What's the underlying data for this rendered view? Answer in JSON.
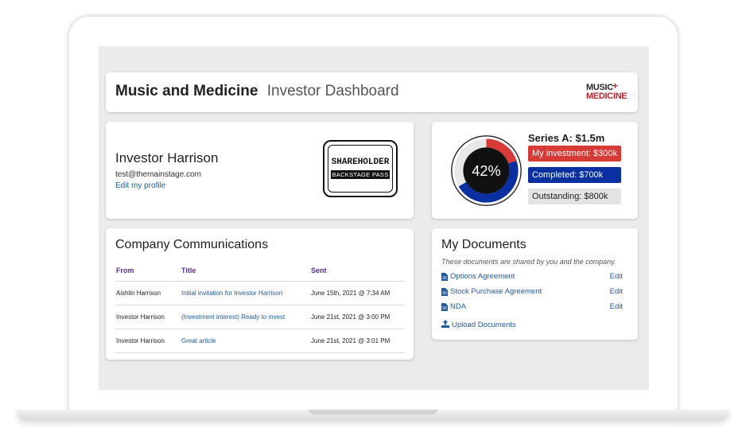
{
  "header": {
    "title": "Music and Medicine",
    "subtitle": "Investor Dashboard",
    "logo_line1": "MUSIC",
    "logo_line2": "MEDICINE"
  },
  "profile": {
    "name": "Investor Harrison",
    "email": "test@themainstage.com",
    "edit_link": "Edit my profile",
    "badge_line1": "SHAREHOLDER",
    "badge_line2": "BACKSTAGE PASS"
  },
  "series": {
    "title": "Series A: $1.5m",
    "percent_label": "42%",
    "investment_label": "My investment: $300k",
    "completed_label": "Completed: $700k",
    "outstanding_label": "Outstanding: $800k",
    "colors": {
      "investment": "#d83a36",
      "completed": "#0a2fa0",
      "outstanding": "#e3e3e3"
    },
    "fractions": {
      "investment": 0.2,
      "completed": 0.4667
    }
  },
  "communications": {
    "title": "Company Communications",
    "columns": [
      "From",
      "Title",
      "Sent"
    ],
    "rows": [
      {
        "from": "Aishlin Harrison",
        "title": "Initial invitation for Investor Harrison",
        "sent": "June 15th, 2021 @ 7:34 AM"
      },
      {
        "from": "Investor Harrison",
        "title": "(Investment interest) Ready to invest",
        "sent": "June 21st, 2021 @ 3:00 PM"
      },
      {
        "from": "Investor Harrison",
        "title": "Great article",
        "sent": "June 21st, 2021 @ 3:01 PM"
      }
    ]
  },
  "documents": {
    "title": "My Documents",
    "note": "These documents are shared by you and the company.",
    "items": [
      {
        "name": "Options Agreement",
        "action": "Edit"
      },
      {
        "name": "Stock Purchase Agreement",
        "action": "Edit"
      },
      {
        "name": "NDA",
        "action": "Edit"
      }
    ],
    "upload_label": "Upload Documents"
  }
}
